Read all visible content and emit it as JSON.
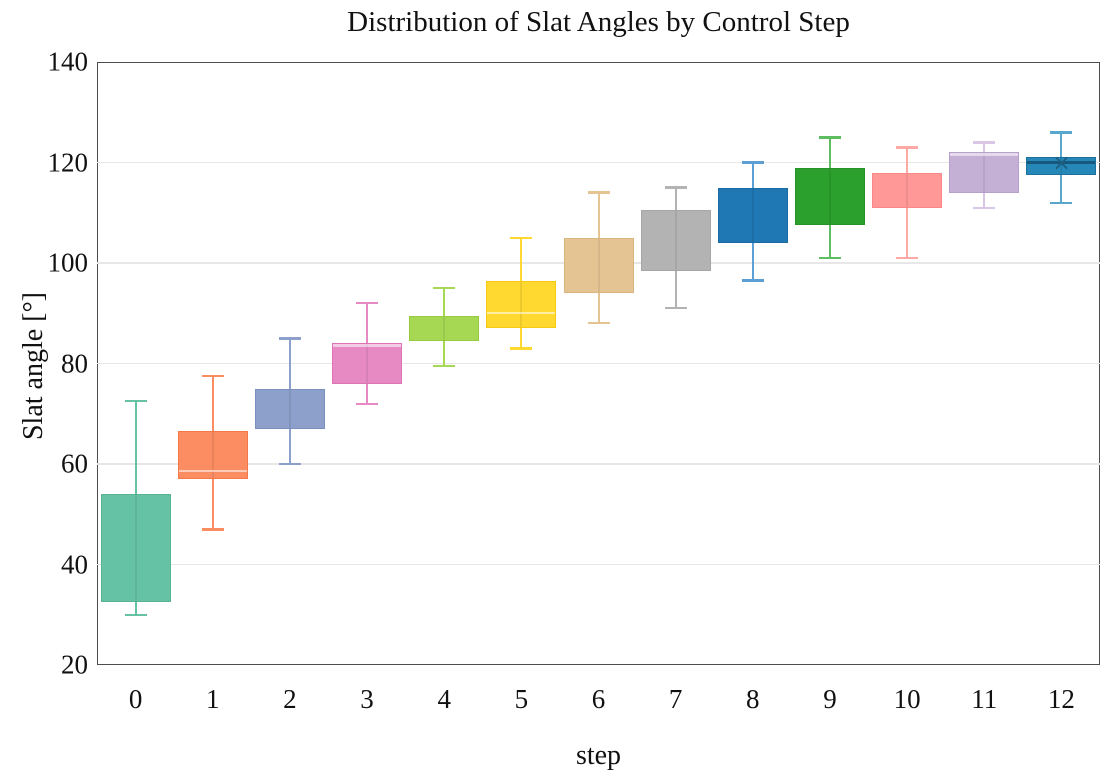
{
  "chart_data": {
    "type": "boxplot",
    "title": "Distribution of Slat Angles by Control Step",
    "xlabel": "step",
    "ylabel": "Slat angle [°]",
    "ylim": [
      20,
      140
    ],
    "yticks": [
      20,
      40,
      60,
      80,
      100,
      120,
      140
    ],
    "grid": "horizontal-light-gray",
    "legend": "none",
    "categories": [
      "0",
      "1",
      "2",
      "3",
      "4",
      "5",
      "6",
      "7",
      "8",
      "9",
      "10",
      "11",
      "12"
    ],
    "boxes": [
      {
        "step": "0",
        "whisker_low": 30,
        "q1": 32.5,
        "median": null,
        "q3": 54,
        "whisker_high": 72.5,
        "fill": "#66c2a5",
        "edge": "#58b294",
        "whisker_color": "#66c2a5",
        "median_style": null
      },
      {
        "step": "1",
        "whisker_low": 47,
        "q1": 57,
        "median": 58.5,
        "q3": 66.5,
        "whisker_high": 77.5,
        "fill": "#fc8d62",
        "edge": "#f4784a",
        "whisker_color": "#fc8d62",
        "median_style": "light"
      },
      {
        "step": "2",
        "whisker_low": 60,
        "q1": 67,
        "median": null,
        "q3": 75,
        "whisker_high": 85,
        "fill": "#8da0cb",
        "edge": "#7b90c0",
        "whisker_color": "#8da0cb",
        "median_style": null
      },
      {
        "step": "3",
        "whisker_low": 72,
        "q1": 76,
        "median": 83.5,
        "q3": 84,
        "whisker_high": 92,
        "fill": "#e78ac3",
        "edge": "#de74b5",
        "whisker_color": "#e78ac3",
        "median_style": "light"
      },
      {
        "step": "4",
        "whisker_low": 79.5,
        "q1": 84.5,
        "median": null,
        "q3": 89.5,
        "whisker_high": 95,
        "fill": "#a6d854",
        "edge": "#97cc3e",
        "whisker_color": "#a6d854",
        "median_style": null
      },
      {
        "step": "5",
        "whisker_low": 83,
        "q1": 87,
        "median": 90,
        "q3": 96.5,
        "whisker_high": 105,
        "fill": "#ffd92f",
        "edge": "#f5c912",
        "whisker_color": "#ffd92f",
        "median_style": "light"
      },
      {
        "step": "6",
        "whisker_low": 88,
        "q1": 94,
        "median": null,
        "q3": 105,
        "whisker_high": 114,
        "fill": "#e5c494",
        "edge": "#dbb57e",
        "whisker_color": "#e5c494",
        "median_style": null
      },
      {
        "step": "7",
        "whisker_low": 91,
        "q1": 98.5,
        "median": null,
        "q3": 110.5,
        "whisker_high": 115,
        "fill": "#b3b3b3",
        "edge": "#a6a6a6",
        "whisker_color": "#b3b3b3",
        "median_style": null
      },
      {
        "step": "8",
        "whisker_low": 96.5,
        "q1": 104,
        "median": null,
        "q3": 115,
        "whisker_high": 120,
        "fill": "#1f77b4",
        "edge": "#1a6aa3",
        "whisker_color": "#5b9fd4",
        "median_style": null
      },
      {
        "step": "9",
        "whisker_low": 101,
        "q1": 107.5,
        "median": null,
        "q3": 119,
        "whisker_high": 125,
        "fill": "#2ca02c",
        "edge": "#27912a",
        "whisker_color": "#5fbd61",
        "median_style": null
      },
      {
        "step": "10",
        "whisker_low": 101,
        "q1": 111,
        "median": null,
        "q3": 118,
        "whisker_high": 123,
        "fill": "#ff9896",
        "edge": "#f98886",
        "whisker_color": "#ffa9a7",
        "median_style": null
      },
      {
        "step": "11",
        "whisker_low": 111,
        "q1": 114,
        "median": 121.5,
        "q3": 122,
        "whisker_high": 124,
        "fill": "#c5b0d5",
        "edge": "#b8a0cc",
        "whisker_color": "#d7c6e4",
        "median_style": "light"
      },
      {
        "step": "12",
        "whisker_low": 112,
        "q1": 117.5,
        "median": 120,
        "q3": 121,
        "whisker_high": 126,
        "fill": "#2688b9",
        "edge": "#1d6f9c",
        "whisker_color": "#58a7cc",
        "median_style": "dark",
        "mean": 119.5,
        "mean_symbol": "×"
      }
    ],
    "colors": {
      "frame": "#4d4d4d",
      "grid": "#e7e7e7",
      "text": "#111111",
      "background": "#ffffff",
      "median_light": "rgba(255,255,255,0.55)",
      "median_dark": "#17597c",
      "mean_marker": "#1b5e82"
    }
  }
}
